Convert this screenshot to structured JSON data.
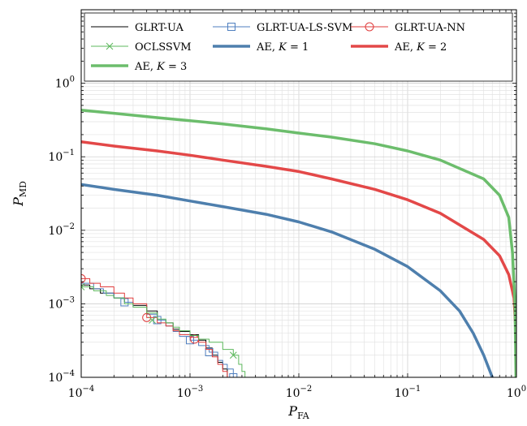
{
  "chart_data": {
    "type": "line",
    "title": "",
    "xlabel": "P",
    "xlabel_sub": "FA",
    "ylabel": "P",
    "ylabel_sub": "MD",
    "x_scale": "log",
    "y_scale": "log",
    "xlim": [
      0.0001,
      1
    ],
    "ylim": [
      0.0001,
      10
    ],
    "grid": true,
    "legend_position": "top",
    "x_ticks": [
      {
        "value": 0.0001,
        "base": "10",
        "exp": "−4"
      },
      {
        "value": 0.001,
        "base": "10",
        "exp": "−3"
      },
      {
        "value": 0.01,
        "base": "10",
        "exp": "−2"
      },
      {
        "value": 0.1,
        "base": "10",
        "exp": "−1"
      },
      {
        "value": 1,
        "base": "10",
        "exp": "0"
      }
    ],
    "y_ticks": [
      {
        "value": 0.0001,
        "base": "10",
        "exp": "−4"
      },
      {
        "value": 0.001,
        "base": "10",
        "exp": "−3"
      },
      {
        "value": 0.01,
        "base": "10",
        "exp": "−2"
      },
      {
        "value": 0.1,
        "base": "10",
        "exp": "−1"
      },
      {
        "value": 1,
        "base": "10",
        "exp": "0"
      }
    ],
    "series": [
      {
        "name": "GLRT-UA",
        "color": "#000000",
        "width": 1,
        "marker": "none",
        "points": [
          [
            0.0001,
            0.0018
          ],
          [
            0.00012,
            0.0016
          ],
          [
            0.00015,
            0.0014
          ],
          [
            0.0002,
            0.0012
          ],
          [
            0.00025,
            0.00105
          ],
          [
            0.0003,
            0.00095
          ],
          [
            0.0004,
            0.0008
          ],
          [
            0.0005,
            0.0006
          ],
          [
            0.0006,
            0.00055
          ],
          [
            0.0007,
            0.00045
          ],
          [
            0.0008,
            0.00042
          ],
          [
            0.001,
            0.00038
          ],
          [
            0.0012,
            0.00032
          ],
          [
            0.0014,
            0.00025
          ],
          [
            0.0016,
            0.0002
          ],
          [
            0.0018,
            0.00016
          ],
          [
            0.002,
            0.00013
          ],
          [
            0.0022,
            0.0001
          ]
        ]
      },
      {
        "name": "GLRT-UA-LS-SVM",
        "color": "#4f7fbf",
        "width": 1,
        "marker": "square",
        "points": [
          [
            0.0001,
            0.0019
          ],
          [
            0.00013,
            0.0016
          ],
          [
            0.00016,
            0.0014
          ],
          [
            0.0002,
            0.0012
          ],
          [
            0.00025,
            0.00105
          ],
          [
            0.0003,
            0.0009
          ],
          [
            0.0004,
            0.00072
          ],
          [
            0.0005,
            0.0006
          ],
          [
            0.0006,
            0.0005
          ],
          [
            0.0007,
            0.00042
          ],
          [
            0.0008,
            0.00036
          ],
          [
            0.001,
            0.00032
          ],
          [
            0.0012,
            0.00027
          ],
          [
            0.0015,
            0.00022
          ],
          [
            0.0018,
            0.00017
          ],
          [
            0.002,
            0.00015
          ],
          [
            0.0022,
            0.00013
          ],
          [
            0.0025,
            0.0001
          ]
        ],
        "markers": [
          [
            0.00025,
            0.00105
          ],
          [
            0.0005,
            0.0006
          ],
          [
            0.001,
            0.00032
          ],
          [
            0.0015,
            0.00022
          ],
          [
            0.0025,
            0.0001
          ]
        ]
      },
      {
        "name": "GLRT-UA-NN",
        "color": "#e03c3c",
        "width": 1,
        "marker": "circle",
        "points": [
          [
            0.0001,
            0.0022
          ],
          [
            0.00012,
            0.0019
          ],
          [
            0.00015,
            0.0017
          ],
          [
            0.0002,
            0.0014
          ],
          [
            0.00025,
            0.0012
          ],
          [
            0.0003,
            0.001
          ],
          [
            0.0004,
            0.00065
          ],
          [
            0.0005,
            0.00055
          ],
          [
            0.0006,
            0.0005
          ],
          [
            0.0007,
            0.00043
          ],
          [
            0.0008,
            0.00038
          ],
          [
            0.001,
            0.00035
          ],
          [
            0.0012,
            0.0003
          ],
          [
            0.0014,
            0.00024
          ],
          [
            0.0016,
            0.00019
          ],
          [
            0.0018,
            0.00015
          ],
          [
            0.002,
            0.00012
          ],
          [
            0.0022,
            0.0001
          ]
        ],
        "markers": [
          [
            0.0001,
            0.0022
          ],
          [
            0.0004,
            0.00065
          ],
          [
            0.0011,
            0.00033
          ]
        ]
      },
      {
        "name": "OCLSSVM",
        "color": "#5cb85c",
        "width": 1,
        "marker": "x",
        "points": [
          [
            0.0001,
            0.0017
          ],
          [
            0.00013,
            0.0015
          ],
          [
            0.00017,
            0.0013
          ],
          [
            0.0002,
            0.0012
          ],
          [
            0.00025,
            0.001
          ],
          [
            0.0003,
            0.0009
          ],
          [
            0.0004,
            0.00075
          ],
          [
            0.0005,
            0.00062
          ],
          [
            0.0006,
            0.00055
          ],
          [
            0.0007,
            0.00048
          ],
          [
            0.0008,
            0.00043
          ],
          [
            0.001,
            0.00037
          ],
          [
            0.0012,
            0.00033
          ],
          [
            0.0015,
            0.0003
          ],
          [
            0.002,
            0.00024
          ],
          [
            0.0025,
            0.0002
          ],
          [
            0.0028,
            0.00015
          ],
          [
            0.003,
            0.00012
          ],
          [
            0.0032,
            0.0001
          ]
        ],
        "markers": [
          [
            0.0001,
            0.0017
          ],
          [
            0.00045,
            0.0006
          ],
          [
            0.0025,
            0.0002
          ]
        ]
      },
      {
        "name": "AE, K = 1",
        "color": "#4e7fad",
        "width": 3.5,
        "marker": "none",
        "points": [
          [
            0.0001,
            0.042
          ],
          [
            0.0002,
            0.036
          ],
          [
            0.0005,
            0.03
          ],
          [
            0.001,
            0.025
          ],
          [
            0.002,
            0.021
          ],
          [
            0.005,
            0.0165
          ],
          [
            0.01,
            0.013
          ],
          [
            0.02,
            0.0095
          ],
          [
            0.05,
            0.0055
          ],
          [
            0.1,
            0.0032
          ],
          [
            0.2,
            0.0015
          ],
          [
            0.3,
            0.0008
          ],
          [
            0.4,
            0.0004
          ],
          [
            0.5,
            0.0002
          ],
          [
            0.6,
            0.0001
          ]
        ]
      },
      {
        "name": "AE, K = 2",
        "color": "#e34848",
        "width": 3.5,
        "marker": "none",
        "points": [
          [
            0.0001,
            0.16
          ],
          [
            0.0002,
            0.14
          ],
          [
            0.0005,
            0.12
          ],
          [
            0.001,
            0.105
          ],
          [
            0.002,
            0.09
          ],
          [
            0.005,
            0.074
          ],
          [
            0.01,
            0.063
          ],
          [
            0.02,
            0.05
          ],
          [
            0.05,
            0.036
          ],
          [
            0.1,
            0.026
          ],
          [
            0.2,
            0.017
          ],
          [
            0.5,
            0.0075
          ],
          [
            0.7,
            0.0045
          ],
          [
            0.85,
            0.0025
          ],
          [
            0.95,
            0.0012
          ],
          [
            1,
            0.0003
          ]
        ]
      },
      {
        "name": "AE, K = 3",
        "color": "#6cbd6c",
        "width": 3.5,
        "marker": "none",
        "points": [
          [
            0.0001,
            0.43
          ],
          [
            0.0002,
            0.39
          ],
          [
            0.0005,
            0.34
          ],
          [
            0.001,
            0.31
          ],
          [
            0.002,
            0.28
          ],
          [
            0.005,
            0.24
          ],
          [
            0.01,
            0.21
          ],
          [
            0.02,
            0.185
          ],
          [
            0.05,
            0.15
          ],
          [
            0.1,
            0.12
          ],
          [
            0.2,
            0.09
          ],
          [
            0.5,
            0.05
          ],
          [
            0.7,
            0.03
          ],
          [
            0.85,
            0.015
          ],
          [
            0.92,
            0.005
          ],
          [
            0.97,
            0.001
          ],
          [
            0.99,
            0.0001
          ]
        ]
      }
    ],
    "legend": [
      {
        "label": "GLRT-UA",
        "color": "#000000",
        "width": 1,
        "marker": "none"
      },
      {
        "label": "GLRT-UA-LS-SVM",
        "color": "#4f7fbf",
        "width": 1,
        "marker": "square"
      },
      {
        "label": "GLRT-UA-NN",
        "color": "#e03c3c",
        "width": 1,
        "marker": "circle"
      },
      {
        "label": "OCLSSVM",
        "color": "#5cb85c",
        "width": 1,
        "marker": "x"
      },
      {
        "label": "AE, ",
        "var": "K",
        "eq": " = 1",
        "color": "#4e7fad",
        "width": 3.5,
        "marker": "none"
      },
      {
        "label": "AE, ",
        "var": "K",
        "eq": " = 2",
        "color": "#e34848",
        "width": 3.5,
        "marker": "none"
      },
      {
        "label": "AE, ",
        "var": "K",
        "eq": " = 3",
        "color": "#6cbd6c",
        "width": 3.5,
        "marker": "none"
      }
    ]
  }
}
